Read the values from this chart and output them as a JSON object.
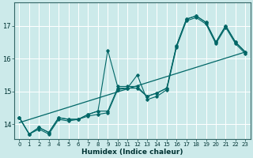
{
  "xlabel": "Humidex (Indice chaleur)",
  "bg_color": "#cceaea",
  "grid_color": "#ffffff",
  "line_color": "#006666",
  "xlim": [
    -0.5,
    23.5
  ],
  "ylim": [
    13.55,
    17.7
  ],
  "yticks": [
    14,
    15,
    16,
    17
  ],
  "xtick_labels": [
    "0",
    "1",
    "2",
    "3",
    "4",
    "5",
    "6",
    "7",
    "8",
    "9",
    "10",
    "11",
    "12",
    "13",
    "14",
    "15",
    "16",
    "17",
    "18",
    "19",
    "20",
    "21",
    "22",
    "23"
  ],
  "line_trend_x": [
    0,
    23
  ],
  "line_trend_y": [
    14.05,
    16.2
  ],
  "line1": [
    14.2,
    13.7,
    13.9,
    13.75,
    14.2,
    14.15,
    14.15,
    14.3,
    14.4,
    14.4,
    15.1,
    15.1,
    15.1,
    14.85,
    14.95,
    15.1,
    16.4,
    17.2,
    17.3,
    17.1,
    16.5,
    17.0,
    16.5,
    16.2
  ],
  "line2": [
    14.2,
    13.7,
    13.9,
    13.75,
    14.2,
    14.15,
    14.15,
    14.3,
    14.4,
    16.25,
    15.15,
    15.15,
    15.15,
    14.85,
    14.95,
    15.1,
    16.4,
    17.2,
    17.3,
    17.1,
    16.5,
    17.0,
    16.5,
    16.2
  ],
  "line3": [
    14.2,
    13.7,
    13.85,
    13.7,
    14.15,
    14.1,
    14.15,
    14.25,
    14.3,
    14.35,
    15.05,
    15.1,
    15.5,
    14.75,
    14.85,
    15.05,
    16.35,
    17.15,
    17.25,
    17.05,
    16.45,
    16.95,
    16.45,
    16.15
  ]
}
